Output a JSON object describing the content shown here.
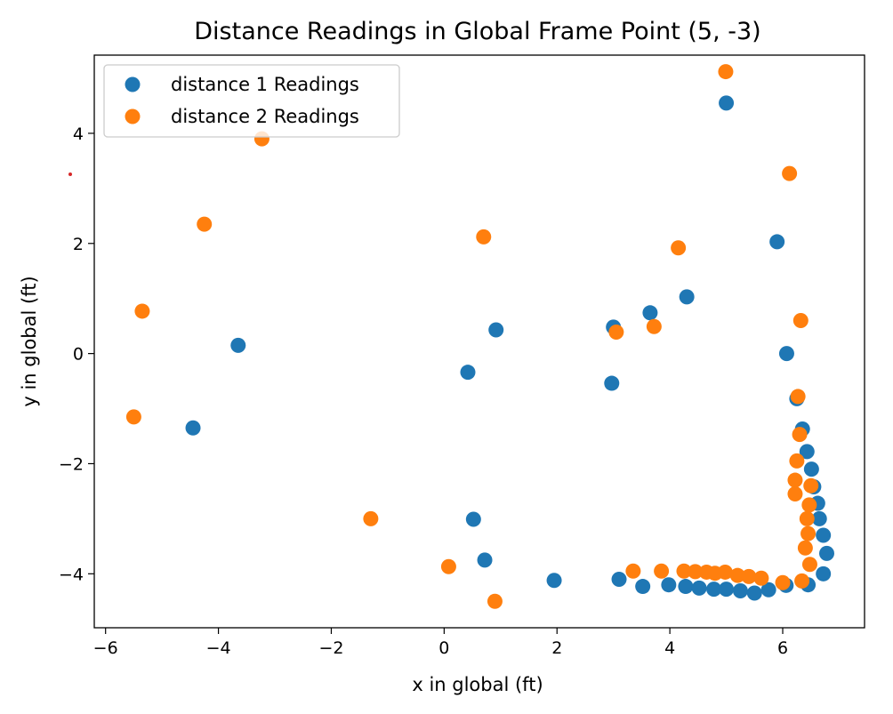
{
  "chart_data": {
    "type": "scatter",
    "title": "Distance Readings in Global Frame Point (5, -3)",
    "xlabel": "x in global (ft)",
    "ylabel": "y in global (ft)",
    "xlim": [
      -6.2,
      7.45
    ],
    "ylim": [
      -4.98,
      5.42
    ],
    "xticks": [
      -6,
      -4,
      -2,
      0,
      2,
      4,
      6
    ],
    "yticks": [
      -4,
      -2,
      0,
      2,
      4
    ],
    "tick_labels_x": [
      "−6",
      "−4",
      "−2",
      "0",
      "2",
      "4",
      "6"
    ],
    "tick_labels_y": [
      "−4",
      "−2",
      "0",
      "2",
      "4"
    ],
    "grid": false,
    "legend_position": "top-left",
    "series": [
      {
        "name": "distance 1 Readings",
        "color": "#1f77b4",
        "points": [
          [
            -4.45,
            -1.35
          ],
          [
            -3.65,
            0.15
          ],
          [
            0.42,
            -0.34
          ],
          [
            0.92,
            0.43
          ],
          [
            0.52,
            -3.01
          ],
          [
            0.72,
            -3.75
          ],
          [
            1.95,
            -4.12
          ],
          [
            2.97,
            -0.54
          ],
          [
            3.0,
            0.48
          ],
          [
            3.1,
            -4.1
          ],
          [
            3.52,
            -4.23
          ],
          [
            3.65,
            0.74
          ],
          [
            3.98,
            -4.2
          ],
          [
            4.28,
            -4.23
          ],
          [
            4.3,
            1.03
          ],
          [
            4.52,
            -4.26
          ],
          [
            4.78,
            -4.28
          ],
          [
            5.0,
            4.55
          ],
          [
            5.0,
            -4.28
          ],
          [
            5.25,
            -4.31
          ],
          [
            5.5,
            -4.35
          ],
          [
            5.75,
            -4.29
          ],
          [
            5.9,
            2.03
          ],
          [
            6.06,
            -4.21
          ],
          [
            6.07,
            0.0
          ],
          [
            6.25,
            -0.82
          ],
          [
            6.35,
            -1.37
          ],
          [
            6.43,
            -1.78
          ],
          [
            6.45,
            -4.2
          ],
          [
            6.51,
            -2.1
          ],
          [
            6.55,
            -2.42
          ],
          [
            6.62,
            -2.72
          ],
          [
            6.65,
            -3.0
          ],
          [
            6.72,
            -3.3
          ],
          [
            6.72,
            -4.0
          ],
          [
            6.78,
            -3.63
          ]
        ]
      },
      {
        "name": "distance 2 Readings",
        "color": "#ff7f0e",
        "points": [
          [
            -5.5,
            -1.15
          ],
          [
            -5.35,
            0.77
          ],
          [
            -4.25,
            2.35
          ],
          [
            -3.23,
            3.9
          ],
          [
            -1.3,
            -3.0
          ],
          [
            0.08,
            -3.87
          ],
          [
            0.7,
            2.12
          ],
          [
            0.9,
            -4.5
          ],
          [
            3.05,
            0.39
          ],
          [
            3.35,
            -3.95
          ],
          [
            3.72,
            0.49
          ],
          [
            3.85,
            -3.95
          ],
          [
            4.15,
            1.92
          ],
          [
            4.25,
            -3.95
          ],
          [
            4.45,
            -3.96
          ],
          [
            4.65,
            -3.97
          ],
          [
            4.8,
            -3.99
          ],
          [
            4.98,
            -3.97
          ],
          [
            4.99,
            5.12
          ],
          [
            5.2,
            -4.03
          ],
          [
            5.4,
            -4.05
          ],
          [
            5.62,
            -4.08
          ],
          [
            6.0,
            -4.16
          ],
          [
            6.12,
            3.27
          ],
          [
            6.22,
            -2.3
          ],
          [
            6.22,
            -2.55
          ],
          [
            6.25,
            -1.95
          ],
          [
            6.27,
            -0.78
          ],
          [
            6.3,
            -1.47
          ],
          [
            6.32,
            0.6
          ],
          [
            6.34,
            -4.13
          ],
          [
            6.4,
            -3.53
          ],
          [
            6.43,
            -3.0
          ],
          [
            6.45,
            -3.27
          ],
          [
            6.47,
            -2.75
          ],
          [
            6.5,
            -2.4
          ],
          [
            6.48,
            -3.83
          ]
        ]
      }
    ]
  }
}
